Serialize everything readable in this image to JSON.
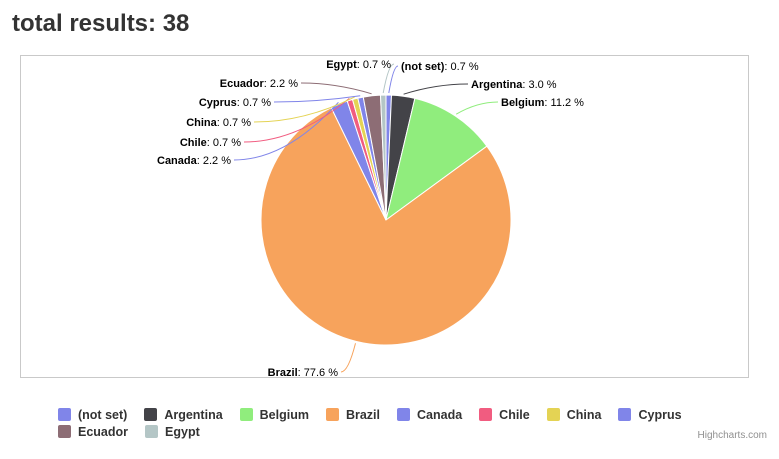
{
  "page": {
    "title": "total results: 38"
  },
  "chart_data": {
    "type": "pie",
    "slices": [
      {
        "name": "(not set)",
        "value": 0.7,
        "label": "0.7 %",
        "color": "#8085e9"
      },
      {
        "name": "Argentina",
        "value": 3.0,
        "label": "3.0 %",
        "color": "#434348"
      },
      {
        "name": "Belgium",
        "value": 11.2,
        "label": "11.2 %",
        "color": "#90ed7d"
      },
      {
        "name": "Brazil",
        "value": 77.6,
        "label": "77.6 %",
        "color": "#f7a35c"
      },
      {
        "name": "Canada",
        "value": 2.2,
        "label": "2.2 %",
        "color": "#8085e9"
      },
      {
        "name": "Chile",
        "value": 0.7,
        "label": "0.7 %",
        "color": "#f15c80"
      },
      {
        "name": "China",
        "value": 0.7,
        "label": "0.7 %",
        "color": "#e4d354"
      },
      {
        "name": "Cyprus",
        "value": 0.7,
        "label": "0.7 %",
        "color": "#8085e9"
      },
      {
        "name": "Ecuador",
        "value": 2.2,
        "label": "2.2 %",
        "color": "#8d6d75"
      },
      {
        "name": "Egypt",
        "value": 0.7,
        "label": "0.7 %",
        "color": "#b4c6c6"
      }
    ],
    "legend": {
      "placement": "bottom",
      "rows": [
        [
          "(not set)",
          "Argentina",
          "Belgium",
          "Brazil",
          "Canada",
          "Chile",
          "China",
          "Cyprus"
        ],
        [
          "Ecuador",
          "Egypt"
        ]
      ]
    }
  },
  "credits": "Highcharts.com"
}
